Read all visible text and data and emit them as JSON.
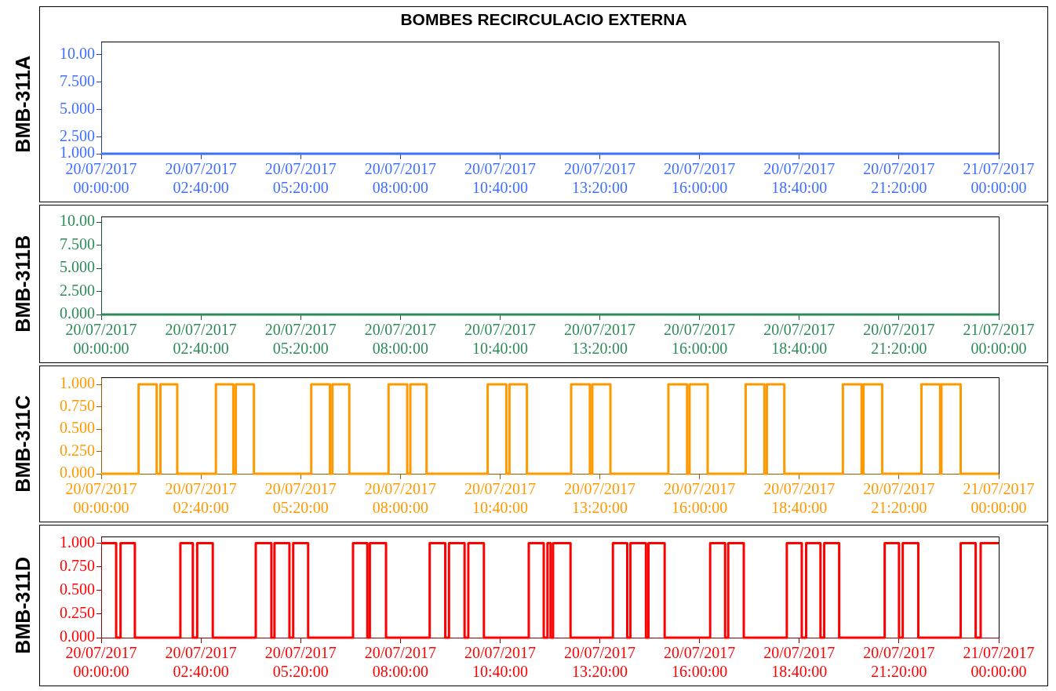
{
  "chart_data": [
    {
      "type": "step",
      "title": "BOMBES RECIRCULACIO EXTERNA",
      "ylabel": "BMB-311A",
      "marker": "none",
      "xlim": [
        "2017-07-20T00:00",
        "2017-07-21T00:00"
      ],
      "xticks": [
        {
          "value": "2017-07-20T00:00",
          "label": "20/07/2017\n00:00:00"
        },
        {
          "value": "2017-07-20T02:40",
          "label": "20/07/2017\n02:40:00"
        },
        {
          "value": "2017-07-20T05:20",
          "label": "20/07/2017\n05:20:00"
        },
        {
          "value": "2017-07-20T08:00",
          "label": "20/07/2017\n08:00:00"
        },
        {
          "value": "2017-07-20T10:40",
          "label": "20/07/2017\n10:40:00"
        },
        {
          "value": "2017-07-20T13:20",
          "label": "20/07/2017\n13:20:00"
        },
        {
          "value": "2017-07-20T16:00",
          "label": "20/07/2017\n16:00:00"
        },
        {
          "value": "2017-07-20T18:40",
          "label": "20/07/2017\n18:40:00"
        },
        {
          "value": "2017-07-20T21:20",
          "label": "20/07/2017\n21:20:00"
        },
        {
          "value": "2017-07-21T00:00",
          "label": "21/07/2017\n00:00:00"
        }
      ],
      "ylim": [
        1,
        11.2
      ],
      "yticks": [
        {
          "value": 1,
          "label": "1.000"
        },
        {
          "value": 2.5,
          "label": "2.500"
        },
        {
          "value": 5,
          "label": "5.000"
        },
        {
          "value": 7.5,
          "label": "7.500"
        },
        {
          "value": 10,
          "label": "10.00"
        }
      ],
      "series": [
        {
          "color": "#3f6fff",
          "x": [
            "2017-07-20T00:00",
            "2017-07-21T00:00"
          ],
          "values": [
            1,
            1
          ]
        }
      ]
    },
    {
      "type": "step",
      "ylabel": "BMB-311B",
      "marker": "none",
      "xlim": [
        "2017-07-20T00:00",
        "2017-07-21T00:00"
      ],
      "xticks": [
        {
          "value": "2017-07-20T00:00",
          "label": "20/07/2017\n00:00:00"
        },
        {
          "value": "2017-07-20T02:40",
          "label": "20/07/2017\n02:40:00"
        },
        {
          "value": "2017-07-20T05:20",
          "label": "20/07/2017\n05:20:00"
        },
        {
          "value": "2017-07-20T08:00",
          "label": "20/07/2017\n08:00:00"
        },
        {
          "value": "2017-07-20T10:40",
          "label": "20/07/2017\n10:40:00"
        },
        {
          "value": "2017-07-20T13:20",
          "label": "20/07/2017\n13:20:00"
        },
        {
          "value": "2017-07-20T16:00",
          "label": "20/07/2017\n16:00:00"
        },
        {
          "value": "2017-07-20T18:40",
          "label": "20/07/2017\n18:40:00"
        },
        {
          "value": "2017-07-20T21:20",
          "label": "20/07/2017\n21:20:00"
        },
        {
          "value": "2017-07-21T00:00",
          "label": "21/07/2017\n00:00:00"
        }
      ],
      "ylim": [
        0,
        10.6
      ],
      "yticks": [
        {
          "value": 0,
          "label": "0.000"
        },
        {
          "value": 2.5,
          "label": "2.500"
        },
        {
          "value": 5,
          "label": "5.000"
        },
        {
          "value": 7.5,
          "label": "7.500"
        },
        {
          "value": 10,
          "label": "10.00"
        }
      ],
      "series": [
        {
          "color": "#2e8b57",
          "x": [
            "2017-07-20T00:00",
            "2017-07-21T00:00"
          ],
          "values": [
            0,
            0
          ]
        }
      ]
    },
    {
      "type": "step",
      "ylabel": "BMB-311C",
      "marker": "none",
      "xlim": [
        "2017-07-20T00:00",
        "2017-07-21T00:00"
      ],
      "xticks": [
        {
          "value": "2017-07-20T00:00",
          "label": "20/07/2017\n00:00:00"
        },
        {
          "value": "2017-07-20T02:40",
          "label": "20/07/2017\n02:40:00"
        },
        {
          "value": "2017-07-20T05:20",
          "label": "20/07/2017\n05:20:00"
        },
        {
          "value": "2017-07-20T08:00",
          "label": "20/07/2017\n08:00:00"
        },
        {
          "value": "2017-07-20T10:40",
          "label": "20/07/2017\n10:40:00"
        },
        {
          "value": "2017-07-20T13:20",
          "label": "20/07/2017\n13:20:00"
        },
        {
          "value": "2017-07-20T16:00",
          "label": "20/07/2017\n16:00:00"
        },
        {
          "value": "2017-07-20T18:40",
          "label": "20/07/2017\n18:40:00"
        },
        {
          "value": "2017-07-20T21:20",
          "label": "20/07/2017\n21:20:00"
        },
        {
          "value": "2017-07-21T00:00",
          "label": "21/07/2017\n00:00:00"
        }
      ],
      "ylim": [
        0,
        1.08
      ],
      "yticks": [
        {
          "value": 0,
          "label": "0.000"
        },
        {
          "value": 0.25,
          "label": "0.250"
        },
        {
          "value": 0.5,
          "label": "0.500"
        },
        {
          "value": 0.75,
          "label": "0.750"
        },
        {
          "value": 1,
          "label": "1.000"
        }
      ],
      "series": [
        {
          "color": "#ff9900",
          "x": [
            "2017-07-20T00:00",
            "2017-07-20T01:00",
            "2017-07-20T01:29",
            "2017-07-20T01:35",
            "2017-07-20T02:02",
            "2017-07-20T03:04",
            "2017-07-20T03:32",
            "2017-07-20T03:36",
            "2017-07-20T04:05",
            "2017-07-20T05:37",
            "2017-07-20T06:07",
            "2017-07-20T06:11",
            "2017-07-20T06:38",
            "2017-07-20T07:41",
            "2017-07-20T08:11",
            "2017-07-20T08:16",
            "2017-07-20T08:42",
            "2017-07-20T10:20",
            "2017-07-20T10:50",
            "2017-07-20T10:55",
            "2017-07-20T11:23",
            "2017-07-20T12:34",
            "2017-07-20T13:04",
            "2017-07-20T13:08",
            "2017-07-20T13:37",
            "2017-07-20T15:10",
            "2017-07-20T15:40",
            "2017-07-20T15:44",
            "2017-07-20T16:13",
            "2017-07-20T17:14",
            "2017-07-20T17:44",
            "2017-07-20T17:48",
            "2017-07-20T18:16",
            "2017-07-20T19:50",
            "2017-07-20T20:20",
            "2017-07-20T20:23",
            "2017-07-20T20:53",
            "2017-07-20T21:56",
            "2017-07-20T22:26",
            "2017-07-20T22:28",
            "2017-07-20T22:59",
            "2017-07-21T00:00"
          ],
          "values": [
            0,
            1,
            0,
            1,
            0,
            1,
            0,
            1,
            0,
            1,
            0,
            1,
            0,
            1,
            0,
            1,
            0,
            1,
            0,
            1,
            0,
            1,
            0,
            1,
            0,
            1,
            0,
            1,
            0,
            1,
            0,
            1,
            0,
            1,
            0,
            1,
            0,
            1,
            0,
            1,
            0,
            0
          ]
        }
      ]
    },
    {
      "type": "step",
      "ylabel": "BMB-311D",
      "marker": "none",
      "xlim": [
        "2017-07-20T00:00",
        "2017-07-21T00:00"
      ],
      "xticks": [
        {
          "value": "2017-07-20T00:00",
          "label": "20/07/2017\n00:00:00"
        },
        {
          "value": "2017-07-20T02:40",
          "label": "20/07/2017\n02:40:00"
        },
        {
          "value": "2017-07-20T05:20",
          "label": "20/07/2017\n05:20:00"
        },
        {
          "value": "2017-07-20T08:00",
          "label": "20/07/2017\n08:00:00"
        },
        {
          "value": "2017-07-20T10:40",
          "label": "20/07/2017\n10:40:00"
        },
        {
          "value": "2017-07-20T13:20",
          "label": "20/07/2017\n13:20:00"
        },
        {
          "value": "2017-07-20T16:00",
          "label": "20/07/2017\n16:00:00"
        },
        {
          "value": "2017-07-20T18:40",
          "label": "20/07/2017\n18:40:00"
        },
        {
          "value": "2017-07-20T21:20",
          "label": "20/07/2017\n21:20:00"
        },
        {
          "value": "2017-07-21T00:00",
          "label": "21/07/2017\n00:00:00"
        }
      ],
      "ylim": [
        0,
        1.07
      ],
      "yticks": [
        {
          "value": 0,
          "label": "0.000"
        },
        {
          "value": 0.25,
          "label": "0.250"
        },
        {
          "value": 0.5,
          "label": "0.500"
        },
        {
          "value": 0.75,
          "label": "0.750"
        },
        {
          "value": 1,
          "label": "1.000"
        }
      ],
      "series": [
        {
          "color": "#ff0000",
          "x": [
            "2017-07-20T00:00",
            "2017-07-20T00:24",
            "2017-07-20T00:31",
            "2017-07-20T00:54",
            "2017-07-20T02:07",
            "2017-07-20T02:27",
            "2017-07-20T02:34",
            "2017-07-20T02:59",
            "2017-07-20T04:08",
            "2017-07-20T04:33",
            "2017-07-20T04:38",
            "2017-07-20T05:02",
            "2017-07-20T05:08",
            "2017-07-20T05:32",
            "2017-07-20T06:44",
            "2017-07-20T07:07",
            "2017-07-20T07:11",
            "2017-07-20T07:37",
            "2017-07-20T08:47",
            "2017-07-20T09:12",
            "2017-07-20T09:18",
            "2017-07-20T09:43",
            "2017-07-20T09:49",
            "2017-07-20T10:14",
            "2017-07-20T11:26",
            "2017-07-20T11:50",
            "2017-07-20T11:56",
            "2017-07-20T12:01",
            "2017-07-20T12:05",
            "2017-07-20T12:33",
            "2017-07-20T13:41",
            "2017-07-20T14:04",
            "2017-07-20T14:09",
            "2017-07-20T14:34",
            "2017-07-20T14:38",
            "2017-07-20T15:04",
            "2017-07-20T16:17",
            "2017-07-20T16:41",
            "2017-07-20T16:46",
            "2017-07-20T17:11",
            "2017-07-20T18:20",
            "2017-07-20T18:44",
            "2017-07-20T18:51",
            "2017-07-20T19:14",
            "2017-07-20T19:20",
            "2017-07-20T19:44",
            "2017-07-20T20:57",
            "2017-07-20T21:20",
            "2017-07-20T21:26",
            "2017-07-20T21:51",
            "2017-07-20T22:59",
            "2017-07-20T23:23",
            "2017-07-20T23:31",
            "2017-07-21T00:00"
          ],
          "values": [
            1,
            0,
            1,
            0,
            1,
            0,
            1,
            0,
            1,
            0,
            1,
            0,
            1,
            0,
            1,
            0,
            1,
            0,
            1,
            0,
            1,
            0,
            1,
            0,
            1,
            0,
            1,
            0,
            1,
            0,
            1,
            0,
            1,
            0,
            1,
            0,
            1,
            0,
            1,
            0,
            1,
            0,
            1,
            0,
            1,
            0,
            1,
            0,
            1,
            0,
            1,
            0,
            1,
            1
          ]
        }
      ]
    }
  ]
}
